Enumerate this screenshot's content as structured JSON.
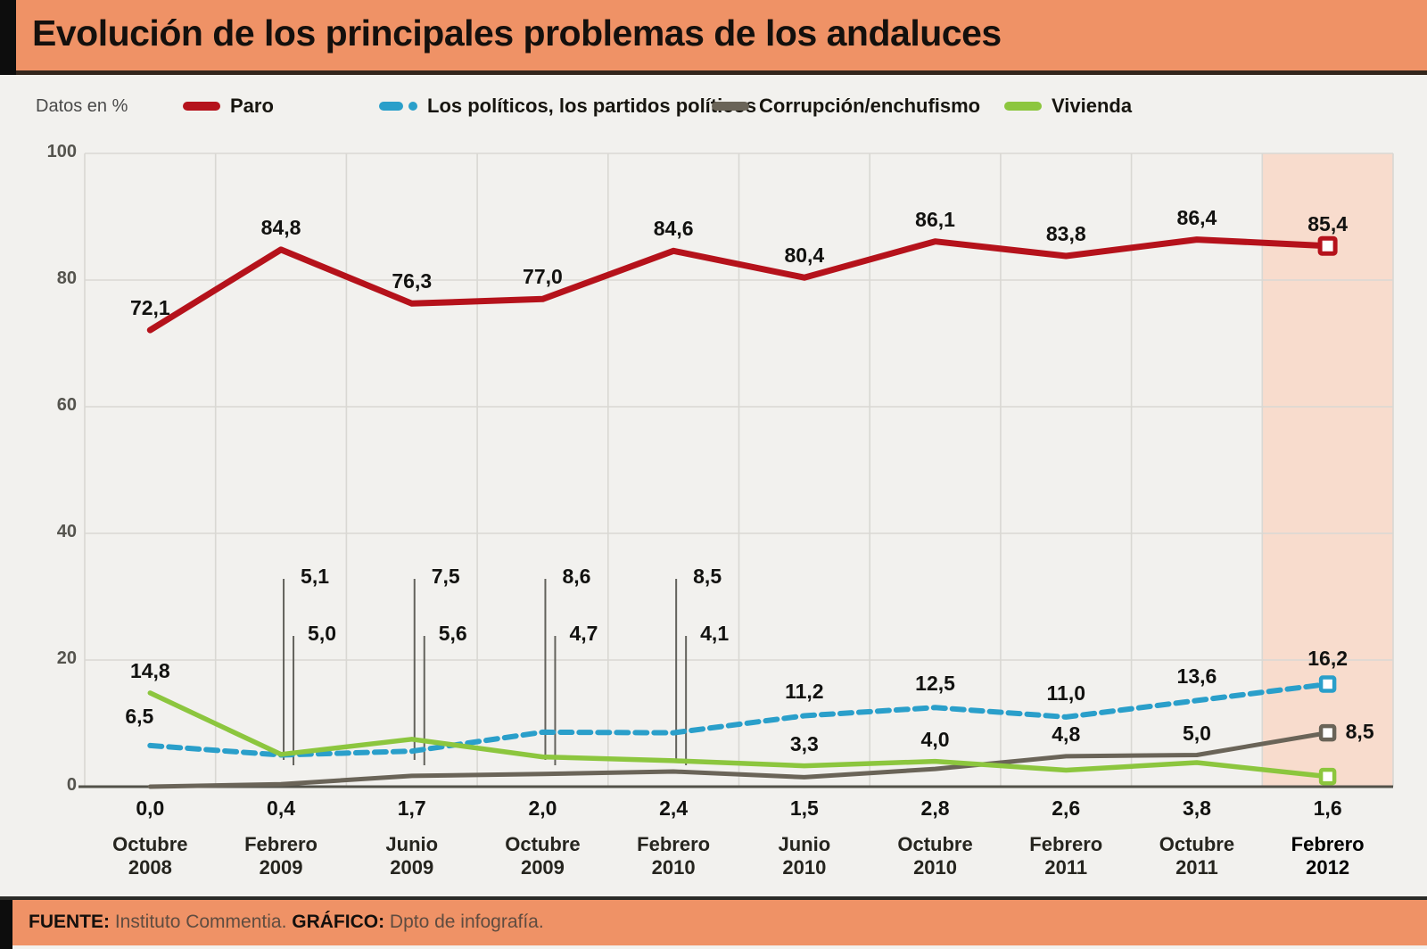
{
  "header": {
    "title": "Evolución de los principales problemas de los andaluces"
  },
  "legend": {
    "note": "Datos en %"
  },
  "footer": {
    "source_label": "FUENTE:",
    "source": " Instituto Commentia. ",
    "credit_label": "GRÁFICO:",
    "credit": " Dpto de infografía."
  },
  "chart_data": {
    "type": "line",
    "title": "Evolución de los principales problemas de los andaluces",
    "unit_note": "Datos en %",
    "categories": [
      "Octubre 2008",
      "Febrero 2009",
      "Junio 2009",
      "Octubre 2009",
      "Febrero 2010",
      "Junio 2010",
      "Octubre 2010",
      "Febrero 2011",
      "Octubre 2011",
      "Febrero 2012"
    ],
    "ylim": [
      0,
      100
    ],
    "yticks": [
      0,
      20,
      40,
      60,
      80,
      100
    ],
    "grid": true,
    "legend_position": "top",
    "highlight_last_column": {
      "category": "Febrero 2012",
      "color": "#f8dccd"
    },
    "end_marker": "white-square",
    "series": [
      {
        "name": "Paro",
        "color": "#b5121b",
        "style": "solid",
        "values": [
          72.1,
          84.8,
          76.3,
          77.0,
          84.6,
          80.4,
          86.1,
          83.8,
          86.4,
          85.4
        ],
        "display": [
          "72,1",
          "84,8",
          "76,3",
          "77,0",
          "84,6",
          "80,4",
          "86,1",
          "83,8",
          "86,4",
          "85,4"
        ]
      },
      {
        "name": "Los políticos, los partidos políticos",
        "color": "#2a9fca",
        "style": "dashed",
        "values": [
          6.5,
          5.0,
          5.6,
          8.6,
          8.5,
          11.2,
          12.5,
          11.0,
          13.6,
          16.2
        ],
        "display": [
          "6,5",
          "5,0",
          "5,6",
          "8,6",
          "8,5",
          "11,2",
          "12,5",
          "11,0",
          "13,6",
          "16,2"
        ]
      },
      {
        "name": "Corrupción/enchufismo",
        "color": "#6a6458",
        "style": "solid",
        "values": [
          0.0,
          0.4,
          1.7,
          2.0,
          2.4,
          1.5,
          2.8,
          4.8,
          5.0,
          8.5
        ],
        "display": [
          "0,0",
          "0,4",
          "1,7",
          "2,0",
          "2,4",
          "1,5",
          "2,8",
          "4,8",
          "5,0",
          "8,5"
        ]
      },
      {
        "name": "Vivienda",
        "color": "#8cc63e",
        "style": "solid",
        "values": [
          14.8,
          5.1,
          7.5,
          4.7,
          4.1,
          3.3,
          4.0,
          2.6,
          3.8,
          1.6
        ],
        "display": [
          "14,8",
          "5,1",
          "7,5",
          "4,7",
          "4,1",
          "3,3",
          "4,0",
          "2,6",
          "3,8",
          "1,6"
        ]
      }
    ],
    "annotations": {
      "paro_labels_above_every_point": true,
      "start_labels": [
        {
          "index": 0,
          "series": "Vivienda",
          "text": "14,8"
        },
        {
          "index": 0,
          "series": "Los políticos, los partidos políticos",
          "text": "6,5"
        }
      ],
      "callouts_with_leader_lines": [
        {
          "index": 1,
          "upper": "5,1",
          "upper_series": "Vivienda",
          "lower": "5,0",
          "lower_series": "Los políticos, los partidos políticos"
        },
        {
          "index": 2,
          "upper": "7,5",
          "upper_series": "Vivienda",
          "lower": "5,6",
          "lower_series": "Los políticos, los partidos políticos"
        },
        {
          "index": 3,
          "upper": "8,6",
          "upper_series": "Los políticos, los partidos políticos",
          "lower": "4,7",
          "lower_series": "Vivienda"
        },
        {
          "index": 4,
          "upper": "8,5",
          "upper_series": "Los políticos, los partidos políticos",
          "lower": "4,1",
          "lower_series": "Vivienda"
        }
      ],
      "blue_row_labels": [
        {
          "index": 5,
          "text": "11,2"
        },
        {
          "index": 6,
          "text": "12,5"
        },
        {
          "index": 7,
          "text": "11,0"
        },
        {
          "index": 8,
          "text": "13,6"
        },
        {
          "index": 9,
          "text": "16,2"
        }
      ],
      "mid_row_labels": [
        {
          "index": 5,
          "text": "3,3",
          "series": "Vivienda"
        },
        {
          "index": 6,
          "text": "4,0",
          "series": "Vivienda"
        },
        {
          "index": 7,
          "text": "4,8",
          "series": "Corrupción/enchufismo"
        },
        {
          "index": 8,
          "text": "5,0",
          "series": "Corrupción/enchufismo"
        }
      ],
      "bottom_row_labels": [
        "0,0",
        "0,4",
        "1,7",
        "2,0",
        "2,4",
        "1,5",
        "2,8",
        "2,6",
        "3,8",
        "1,6"
      ],
      "end_right_label": {
        "index": 9,
        "text": "8,5",
        "series": "Corrupción/enchufismo"
      }
    },
    "accent_orange": "#ef9266",
    "grid_color": "#d9d8d3",
    "axis_color": "#53524a"
  }
}
